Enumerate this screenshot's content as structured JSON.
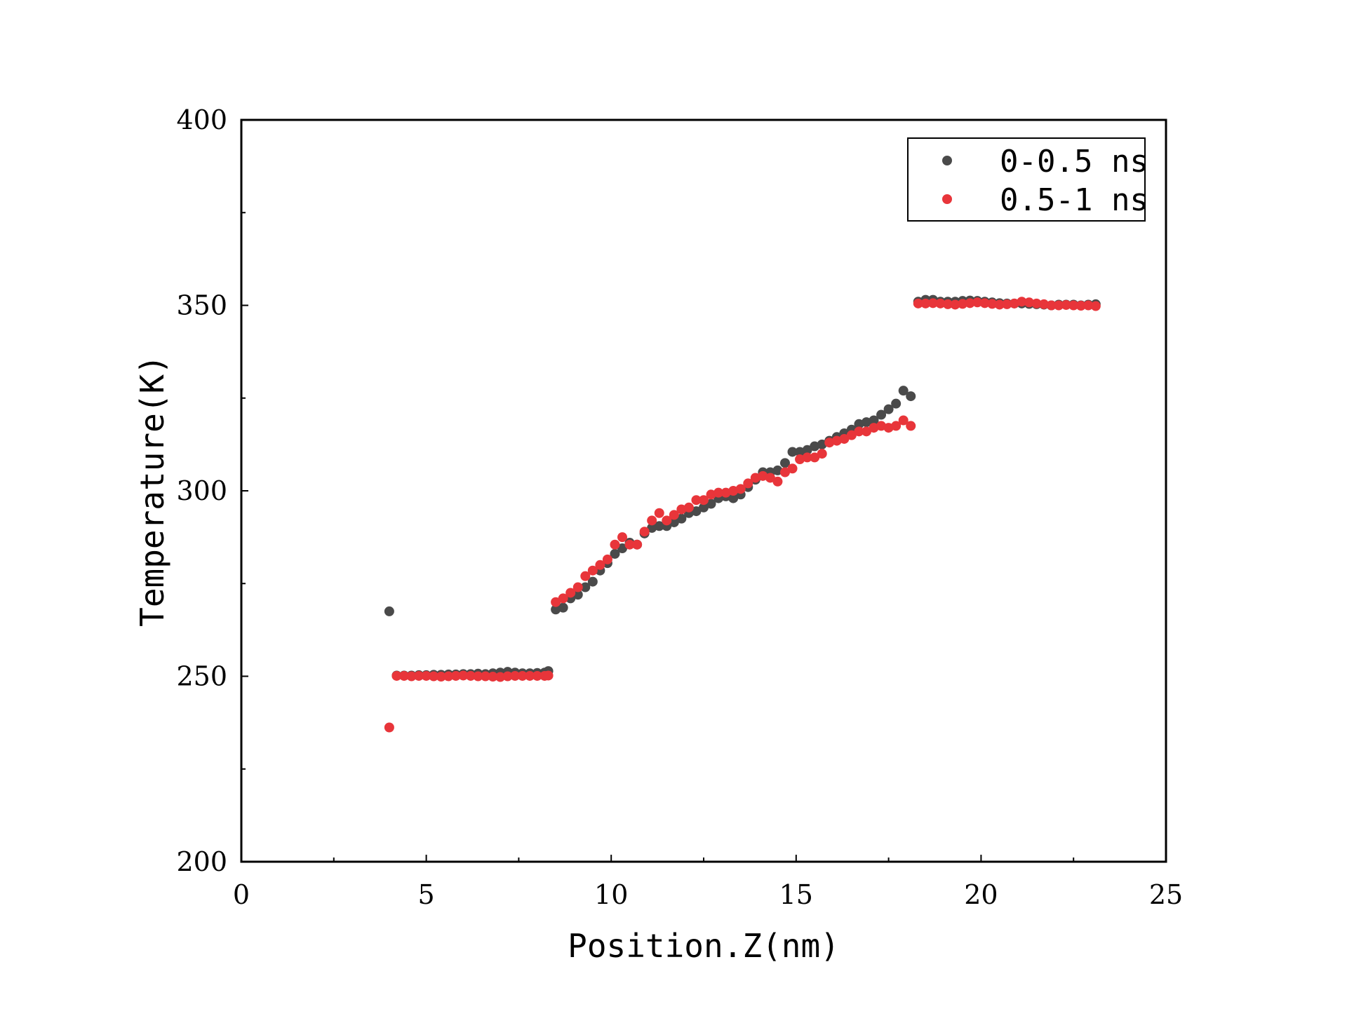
{
  "chart_data": {
    "type": "scatter",
    "title": "",
    "xlabel": "Position.Z(nm)",
    "ylabel": "Temperature(K)",
    "xlim": [
      0,
      25
    ],
    "ylim": [
      200,
      400
    ],
    "x_ticks": [
      0,
      5,
      10,
      15,
      20,
      25
    ],
    "y_ticks": [
      200,
      250,
      300,
      350,
      400
    ],
    "grid": false,
    "legend_position": "top-right",
    "series": [
      {
        "name": "0-0.5 ns",
        "color": "#4a4a4a",
        "points": [
          [
            4.0,
            267.5
          ],
          [
            4.2,
            250.2
          ],
          [
            4.4,
            250.2
          ],
          [
            4.6,
            250.2
          ],
          [
            4.8,
            250.3
          ],
          [
            5.0,
            250.3
          ],
          [
            5.2,
            250.4
          ],
          [
            5.4,
            250.4
          ],
          [
            5.6,
            250.5
          ],
          [
            5.8,
            250.5
          ],
          [
            6.0,
            250.6
          ],
          [
            6.2,
            250.6
          ],
          [
            6.4,
            250.7
          ],
          [
            6.6,
            250.6
          ],
          [
            6.8,
            250.8
          ],
          [
            7.0,
            251.0
          ],
          [
            7.2,
            251.2
          ],
          [
            7.4,
            251.0
          ],
          [
            7.6,
            250.8
          ],
          [
            7.8,
            250.8
          ],
          [
            8.0,
            250.9
          ],
          [
            8.2,
            251.0
          ],
          [
            8.3,
            251.4
          ],
          [
            8.5,
            268.0
          ],
          [
            8.7,
            268.5
          ],
          [
            8.9,
            271.0
          ],
          [
            9.1,
            272.0
          ],
          [
            9.3,
            274.0
          ],
          [
            9.5,
            275.5
          ],
          [
            9.7,
            278.5
          ],
          [
            9.9,
            280.5
          ],
          [
            10.1,
            283.0
          ],
          [
            10.3,
            284.5
          ],
          [
            10.5,
            286.0
          ],
          [
            10.7,
            285.5
          ],
          [
            10.9,
            288.5
          ],
          [
            11.1,
            290.0
          ],
          [
            11.3,
            290.5
          ],
          [
            11.5,
            290.5
          ],
          [
            11.7,
            291.5
          ],
          [
            11.9,
            292.5
          ],
          [
            12.1,
            294.0
          ],
          [
            12.3,
            294.5
          ],
          [
            12.5,
            295.5
          ],
          [
            12.7,
            296.5
          ],
          [
            12.9,
            298.0
          ],
          [
            13.1,
            298.5
          ],
          [
            13.3,
            298.0
          ],
          [
            13.5,
            299.0
          ],
          [
            13.7,
            301.0
          ],
          [
            13.9,
            303.0
          ],
          [
            14.1,
            305.0
          ],
          [
            14.3,
            305.0
          ],
          [
            14.5,
            305.5
          ],
          [
            14.7,
            307.5
          ],
          [
            14.9,
            310.5
          ],
          [
            15.1,
            310.5
          ],
          [
            15.3,
            311.0
          ],
          [
            15.5,
            312.0
          ],
          [
            15.7,
            312.5
          ],
          [
            15.9,
            313.5
          ],
          [
            16.1,
            314.5
          ],
          [
            16.3,
            315.5
          ],
          [
            16.5,
            316.5
          ],
          [
            16.7,
            318.0
          ],
          [
            16.9,
            318.5
          ],
          [
            17.1,
            319.0
          ],
          [
            17.3,
            320.5
          ],
          [
            17.5,
            322.0
          ],
          [
            17.7,
            323.5
          ],
          [
            17.9,
            327.0
          ],
          [
            18.1,
            325.5
          ],
          [
            18.3,
            351.0
          ],
          [
            18.5,
            351.5
          ],
          [
            18.7,
            351.5
          ],
          [
            18.9,
            351.0
          ],
          [
            19.1,
            351.0
          ],
          [
            19.3,
            351.0
          ],
          [
            19.5,
            351.2
          ],
          [
            19.7,
            351.3
          ],
          [
            19.9,
            351.2
          ],
          [
            20.1,
            351.0
          ],
          [
            20.3,
            350.8
          ],
          [
            20.5,
            350.6
          ],
          [
            20.7,
            350.5
          ],
          [
            20.9,
            350.5
          ],
          [
            21.1,
            350.5
          ],
          [
            21.3,
            350.4
          ],
          [
            21.5,
            350.3
          ],
          [
            21.7,
            350.2
          ],
          [
            21.9,
            350.0
          ],
          [
            22.1,
            350.2
          ],
          [
            22.3,
            350.2
          ],
          [
            22.5,
            350.2
          ],
          [
            22.7,
            350.0
          ],
          [
            22.9,
            350.2
          ],
          [
            23.1,
            350.3
          ]
        ]
      },
      {
        "name": "0.5-1 ns",
        "color": "#e8353a",
        "points": [
          [
            4.0,
            236.2
          ],
          [
            4.2,
            250.1
          ],
          [
            4.4,
            250.1
          ],
          [
            4.6,
            250.0
          ],
          [
            4.8,
            250.1
          ],
          [
            5.0,
            250.1
          ],
          [
            5.2,
            250.0
          ],
          [
            5.4,
            249.9
          ],
          [
            5.6,
            250.0
          ],
          [
            5.8,
            250.1
          ],
          [
            6.0,
            250.2
          ],
          [
            6.2,
            250.1
          ],
          [
            6.4,
            250.0
          ],
          [
            6.6,
            250.0
          ],
          [
            6.8,
            249.9
          ],
          [
            7.0,
            249.8
          ],
          [
            7.2,
            250.0
          ],
          [
            7.4,
            250.1
          ],
          [
            7.6,
            250.1
          ],
          [
            7.8,
            250.1
          ],
          [
            8.0,
            250.1
          ],
          [
            8.2,
            250.1
          ],
          [
            8.3,
            250.2
          ],
          [
            8.5,
            270.0
          ],
          [
            8.7,
            271.0
          ],
          [
            8.9,
            272.5
          ],
          [
            9.1,
            274.0
          ],
          [
            9.3,
            277.0
          ],
          [
            9.5,
            278.5
          ],
          [
            9.7,
            280.0
          ],
          [
            9.9,
            281.5
          ],
          [
            10.1,
            285.5
          ],
          [
            10.3,
            287.5
          ],
          [
            10.5,
            285.5
          ],
          [
            10.7,
            285.5
          ],
          [
            10.9,
            289.0
          ],
          [
            11.1,
            292.0
          ],
          [
            11.3,
            294.0
          ],
          [
            11.5,
            292.0
          ],
          [
            11.7,
            293.5
          ],
          [
            11.9,
            295.0
          ],
          [
            12.1,
            295.5
          ],
          [
            12.3,
            297.5
          ],
          [
            12.5,
            297.5
          ],
          [
            12.7,
            299.0
          ],
          [
            12.9,
            299.5
          ],
          [
            13.1,
            299.5
          ],
          [
            13.3,
            300.0
          ],
          [
            13.5,
            300.5
          ],
          [
            13.7,
            302.0
          ],
          [
            13.9,
            303.5
          ],
          [
            14.1,
            304.0
          ],
          [
            14.3,
            303.5
          ],
          [
            14.5,
            302.5
          ],
          [
            14.7,
            305.0
          ],
          [
            14.9,
            306.0
          ],
          [
            15.1,
            308.5
          ],
          [
            15.3,
            309.0
          ],
          [
            15.5,
            309.0
          ],
          [
            15.7,
            310.0
          ],
          [
            15.9,
            313.0
          ],
          [
            16.1,
            313.5
          ],
          [
            16.3,
            314.0
          ],
          [
            16.5,
            315.0
          ],
          [
            16.7,
            316.0
          ],
          [
            16.9,
            316.0
          ],
          [
            17.1,
            317.0
          ],
          [
            17.3,
            317.5
          ],
          [
            17.5,
            317.0
          ],
          [
            17.7,
            317.5
          ],
          [
            17.9,
            319.0
          ],
          [
            18.1,
            317.5
          ],
          [
            18.3,
            350.5
          ],
          [
            18.5,
            350.5
          ],
          [
            18.7,
            350.6
          ],
          [
            18.9,
            350.5
          ],
          [
            19.1,
            350.3
          ],
          [
            19.3,
            350.2
          ],
          [
            19.5,
            350.4
          ],
          [
            19.7,
            350.6
          ],
          [
            19.9,
            350.8
          ],
          [
            20.1,
            350.6
          ],
          [
            20.3,
            350.4
          ],
          [
            20.5,
            350.2
          ],
          [
            20.7,
            350.3
          ],
          [
            20.9,
            350.5
          ],
          [
            21.1,
            351.0
          ],
          [
            21.3,
            350.8
          ],
          [
            21.5,
            350.5
          ],
          [
            21.7,
            350.3
          ],
          [
            21.9,
            350.0
          ],
          [
            22.1,
            350.0
          ],
          [
            22.3,
            350.1
          ],
          [
            22.5,
            350.0
          ],
          [
            22.7,
            349.9
          ],
          [
            22.9,
            350.0
          ],
          [
            23.1,
            349.8
          ]
        ]
      }
    ]
  }
}
